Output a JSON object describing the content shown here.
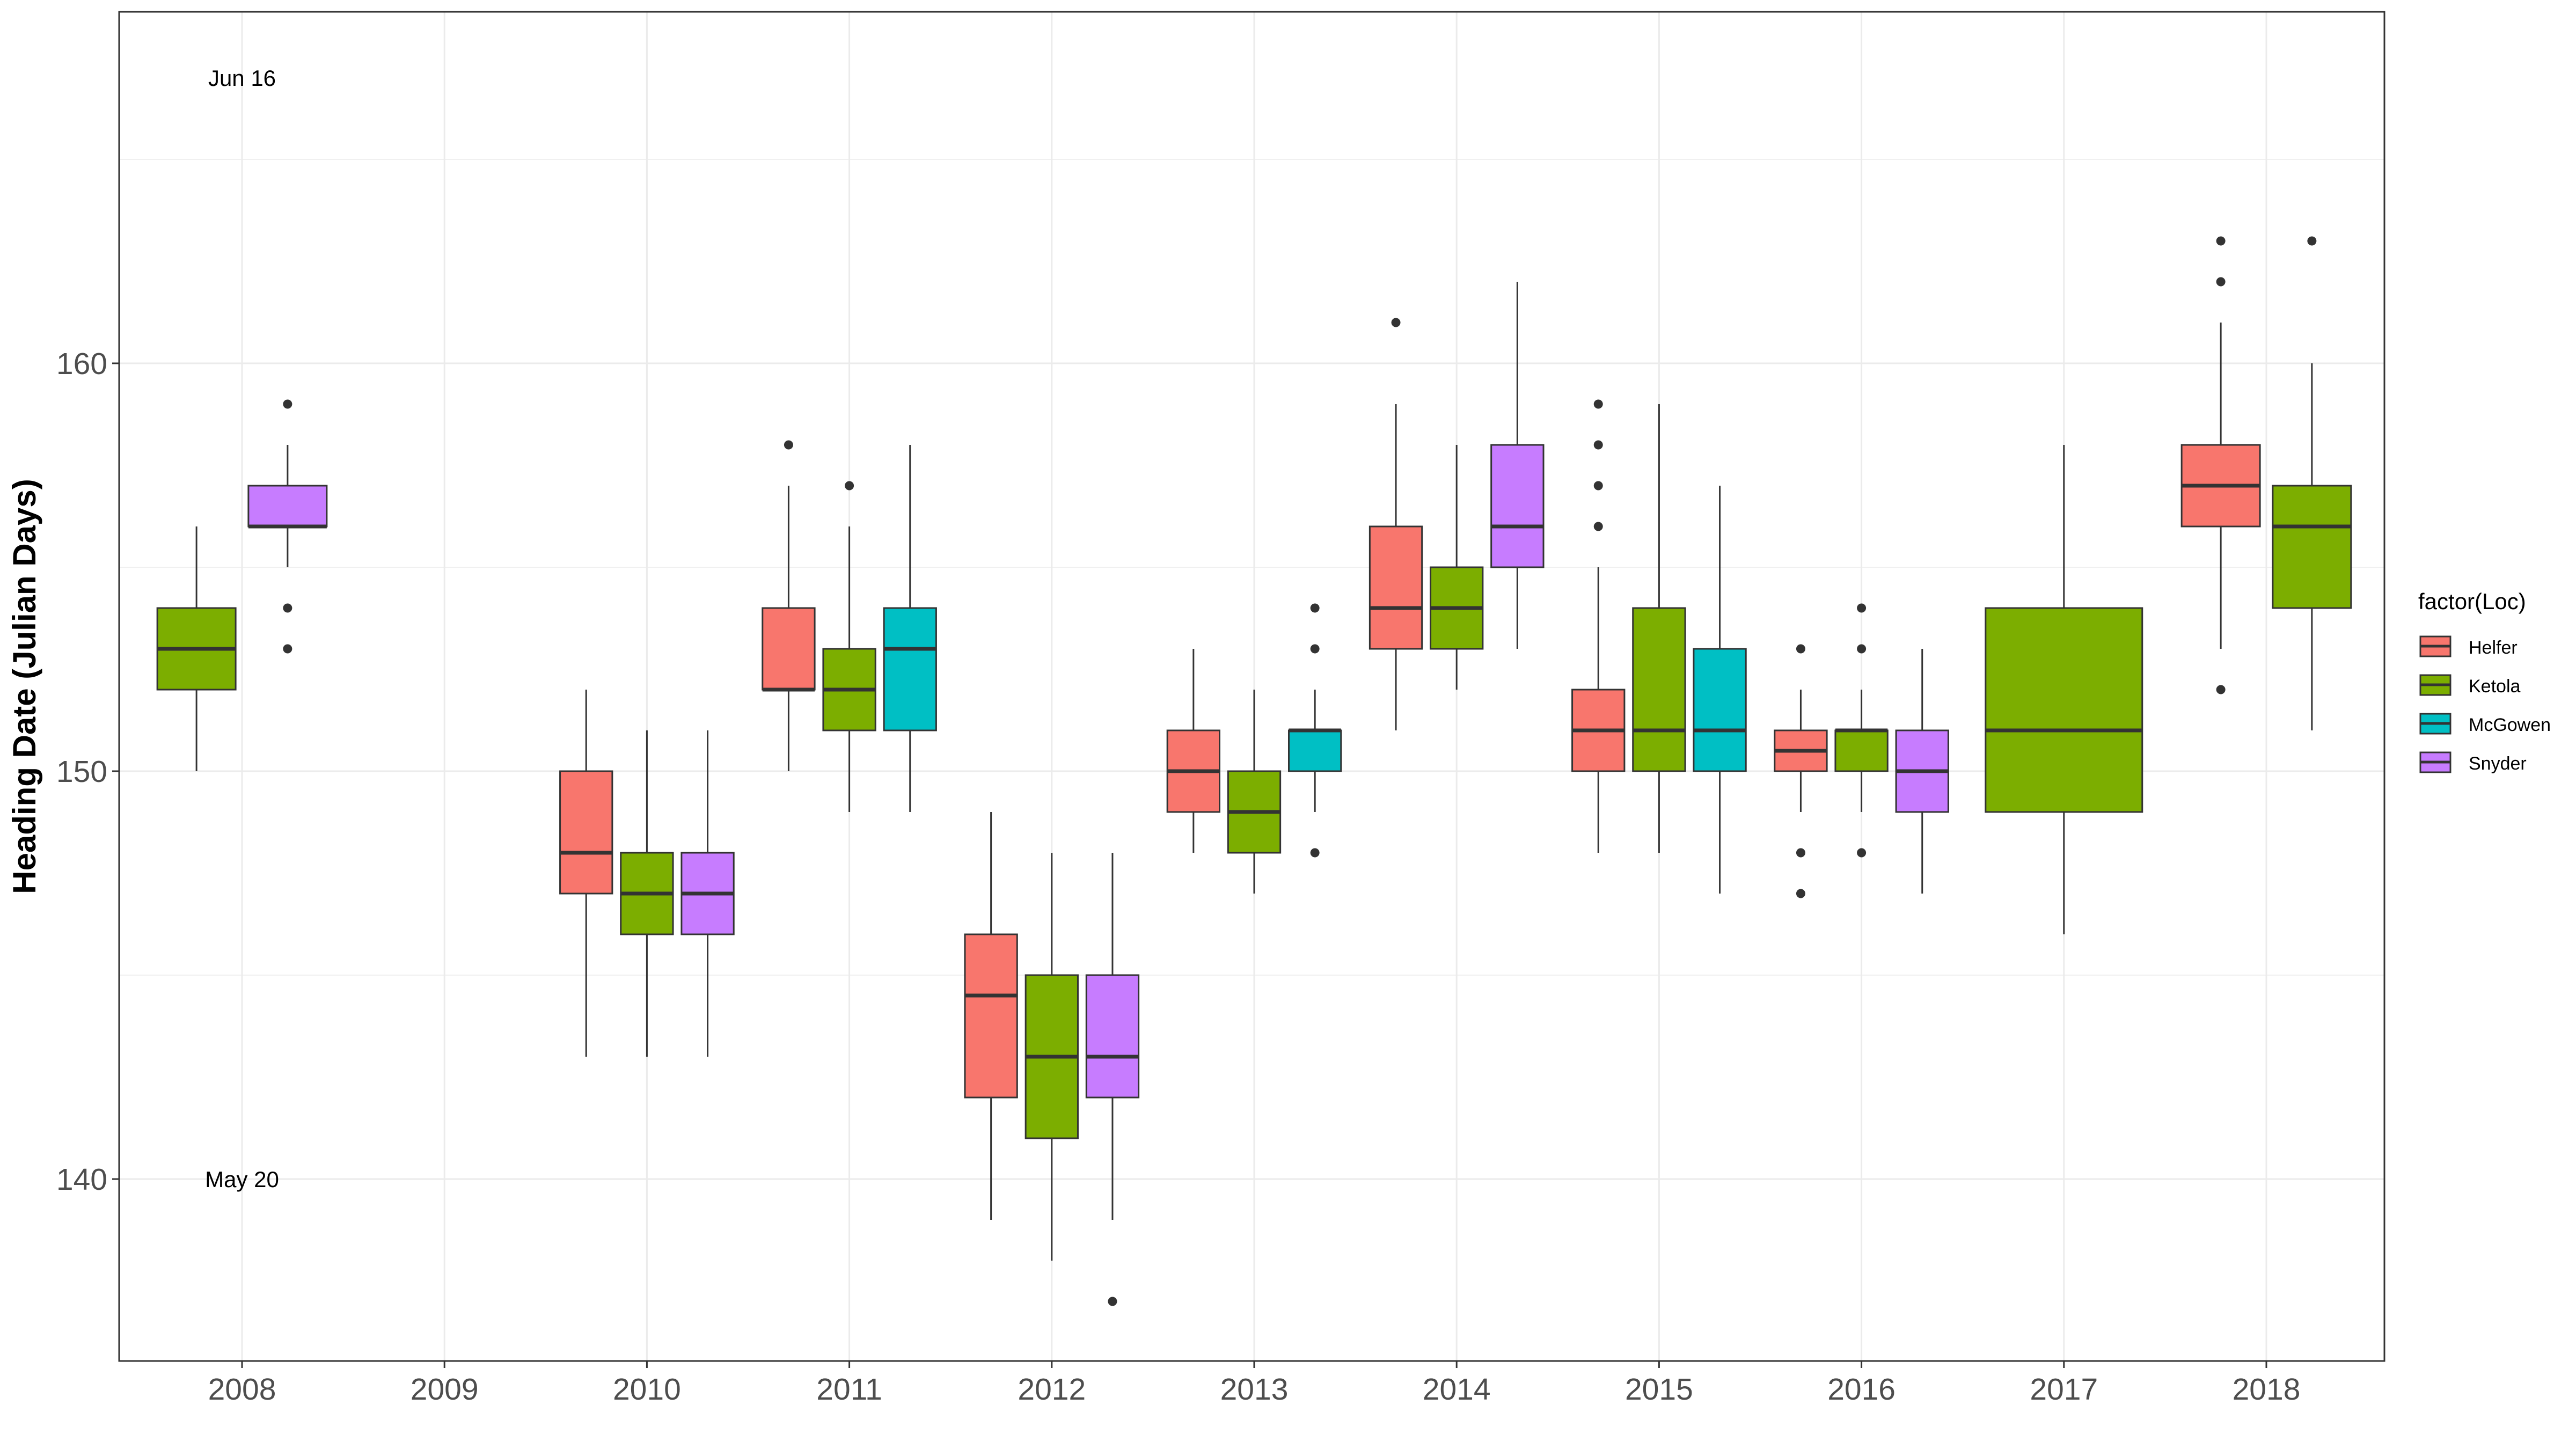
{
  "chart_data": {
    "type": "box",
    "title": "",
    "xlabel": "",
    "ylabel": "Heading Date (Julian Days)",
    "ylim": [
      135.6,
      168.2
    ],
    "yticks": [
      140,
      150,
      160
    ],
    "categories": [
      "2008",
      "2009",
      "2010",
      "2011",
      "2012",
      "2013",
      "2014",
      "2015",
      "2016",
      "2017",
      "2018"
    ],
    "grid": true,
    "legend": {
      "title": "factor(Loc)",
      "position": "right",
      "entries": [
        {
          "name": "Helfer",
          "color": "#F8766D"
        },
        {
          "name": "Ketola",
          "color": "#7CAE00"
        },
        {
          "name": "McGowen",
          "color": "#00BFC4"
        },
        {
          "name": "Snyder",
          "color": "#C77CFF"
        }
      ]
    },
    "annotations": [
      {
        "text": "Jun 16",
        "x": "2008",
        "y": 167
      },
      {
        "text": "May 20",
        "x": "2008",
        "y": 140
      }
    ],
    "boxes": [
      {
        "year": "2008",
        "loc": "Ketola",
        "slot": 0,
        "n": 2,
        "q1": 152,
        "median": 153,
        "q3": 154,
        "lo": 150,
        "hi": 156,
        "outliers": []
      },
      {
        "year": "2008",
        "loc": "Snyder",
        "slot": 1,
        "n": 2,
        "q1": 156,
        "median": 156,
        "q3": 157,
        "lo": 155,
        "hi": 158,
        "outliers": [
          159,
          154,
          153
        ]
      },
      {
        "year": "2010",
        "loc": "Helfer",
        "slot": 0,
        "n": 3,
        "q1": 147,
        "median": 148,
        "q3": 150,
        "lo": 143,
        "hi": 152,
        "outliers": []
      },
      {
        "year": "2010",
        "loc": "Ketola",
        "slot": 1,
        "n": 3,
        "q1": 146,
        "median": 147,
        "q3": 148,
        "lo": 143,
        "hi": 151,
        "outliers": []
      },
      {
        "year": "2010",
        "loc": "Snyder",
        "slot": 2,
        "n": 3,
        "q1": 146,
        "median": 147,
        "q3": 148,
        "lo": 143,
        "hi": 151,
        "outliers": []
      },
      {
        "year": "2011",
        "loc": "Helfer",
        "slot": 0,
        "n": 3,
        "q1": 152,
        "median": 152,
        "q3": 154,
        "lo": 150,
        "hi": 157,
        "outliers": [
          158
        ]
      },
      {
        "year": "2011",
        "loc": "Ketola",
        "slot": 1,
        "n": 3,
        "q1": 151,
        "median": 152,
        "q3": 153,
        "lo": 149,
        "hi": 156,
        "outliers": [
          157
        ]
      },
      {
        "year": "2011",
        "loc": "McGowen",
        "slot": 2,
        "n": 3,
        "q1": 151,
        "median": 153,
        "q3": 154,
        "lo": 149,
        "hi": 158,
        "outliers": []
      },
      {
        "year": "2012",
        "loc": "Helfer",
        "slot": 0,
        "n": 3,
        "q1": 142,
        "median": 144.5,
        "q3": 146,
        "lo": 139,
        "hi": 149,
        "outliers": []
      },
      {
        "year": "2012",
        "loc": "Ketola",
        "slot": 1,
        "n": 3,
        "q1": 141,
        "median": 143,
        "q3": 145,
        "lo": 138,
        "hi": 148,
        "outliers": []
      },
      {
        "year": "2012",
        "loc": "Snyder",
        "slot": 2,
        "n": 3,
        "q1": 142,
        "median": 143,
        "q3": 145,
        "lo": 139,
        "hi": 148,
        "outliers": [
          137
        ]
      },
      {
        "year": "2013",
        "loc": "Helfer",
        "slot": 0,
        "n": 3,
        "q1": 149,
        "median": 150,
        "q3": 151,
        "lo": 148,
        "hi": 153,
        "outliers": []
      },
      {
        "year": "2013",
        "loc": "Ketola",
        "slot": 1,
        "n": 3,
        "q1": 148,
        "median": 149,
        "q3": 150,
        "lo": 147,
        "hi": 152,
        "outliers": []
      },
      {
        "year": "2013",
        "loc": "McGowen",
        "slot": 2,
        "n": 3,
        "q1": 150,
        "median": 151,
        "q3": 151,
        "lo": 149,
        "hi": 152,
        "outliers": [
          154,
          153,
          148
        ]
      },
      {
        "year": "2014",
        "loc": "Helfer",
        "slot": 0,
        "n": 3,
        "q1": 153,
        "median": 154,
        "q3": 156,
        "lo": 151,
        "hi": 159,
        "outliers": [
          161
        ]
      },
      {
        "year": "2014",
        "loc": "Ketola",
        "slot": 1,
        "n": 3,
        "q1": 153,
        "median": 154,
        "q3": 155,
        "lo": 152,
        "hi": 158,
        "outliers": []
      },
      {
        "year": "2014",
        "loc": "Snyder",
        "slot": 2,
        "n": 3,
        "q1": 155,
        "median": 156,
        "q3": 158,
        "lo": 153,
        "hi": 162,
        "outliers": []
      },
      {
        "year": "2015",
        "loc": "Helfer",
        "slot": 0,
        "n": 3,
        "q1": 150,
        "median": 151,
        "q3": 152,
        "lo": 148,
        "hi": 155,
        "outliers": [
          159,
          158,
          157,
          156
        ]
      },
      {
        "year": "2015",
        "loc": "Ketola",
        "slot": 1,
        "n": 3,
        "q1": 150,
        "median": 151,
        "q3": 154,
        "lo": 148,
        "hi": 159,
        "outliers": []
      },
      {
        "year": "2015",
        "loc": "McGowen",
        "slot": 2,
        "n": 3,
        "q1": 150,
        "median": 151,
        "q3": 153,
        "lo": 147,
        "hi": 157,
        "outliers": []
      },
      {
        "year": "2016",
        "loc": "Helfer",
        "slot": 0,
        "n": 3,
        "q1": 150,
        "median": 150.5,
        "q3": 151,
        "lo": 149,
        "hi": 152,
        "outliers": [
          153,
          148,
          147
        ]
      },
      {
        "year": "2016",
        "loc": "Ketola",
        "slot": 1,
        "n": 3,
        "q1": 150,
        "median": 151,
        "q3": 151,
        "lo": 149,
        "hi": 152,
        "outliers": [
          154,
          153,
          148
        ]
      },
      {
        "year": "2016",
        "loc": "Snyder",
        "slot": 2,
        "n": 3,
        "q1": 149,
        "median": 150,
        "q3": 151,
        "lo": 147,
        "hi": 153,
        "outliers": []
      },
      {
        "year": "2017",
        "loc": "Ketola",
        "slot": 0,
        "n": 1,
        "q1": 149,
        "median": 151,
        "q3": 154,
        "lo": 146,
        "hi": 158,
        "outliers": []
      },
      {
        "year": "2018",
        "loc": "Helfer",
        "slot": 0,
        "n": 2,
        "q1": 156,
        "median": 157,
        "q3": 158,
        "lo": 153,
        "hi": 161,
        "outliers": [
          163,
          162,
          152
        ]
      },
      {
        "year": "2018",
        "loc": "Ketola",
        "slot": 1,
        "n": 2,
        "q1": 154,
        "median": 156,
        "q3": 157,
        "lo": 151,
        "hi": 160,
        "outliers": [
          163
        ]
      }
    ]
  }
}
